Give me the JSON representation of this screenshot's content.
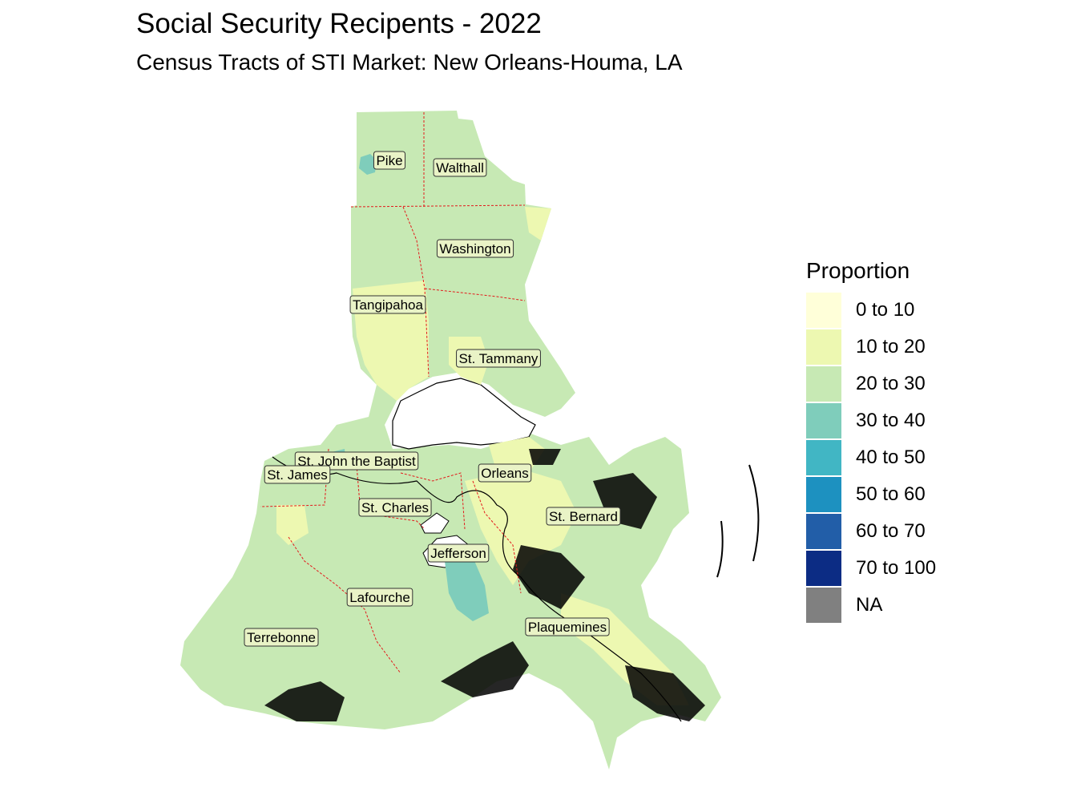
{
  "title": "Social Security Recipents - 2022",
  "subtitle": "Census Tracts of STI Market: New Orleans-Houma, LA",
  "legend": {
    "title": "Proportion",
    "items": [
      {
        "label": "0 to 10",
        "color": "#FFFFD9"
      },
      {
        "label": "10 to 20",
        "color": "#EDF8B1"
      },
      {
        "label": "20 to 30",
        "color": "#C7E9B4"
      },
      {
        "label": "30 to 40",
        "color": "#7FCDBB"
      },
      {
        "label": "40 to 50",
        "color": "#41B6C4"
      },
      {
        "label": "50 to 60",
        "color": "#1D91C0"
      },
      {
        "label": "60 to 70",
        "color": "#225EA8"
      },
      {
        "label": "70 to 100",
        "color": "#0C2C84"
      },
      {
        "label": "NA",
        "color": "#808080"
      }
    ]
  },
  "counties": [
    {
      "id": "pike",
      "label": "Pike"
    },
    {
      "id": "walthall",
      "label": "Walthall"
    },
    {
      "id": "washington",
      "label": "Washington"
    },
    {
      "id": "tangipahoa",
      "label": "Tangipahoa"
    },
    {
      "id": "st-tammany",
      "label": "St. Tammany"
    },
    {
      "id": "st-john",
      "label": "St. John the Baptist"
    },
    {
      "id": "st-james",
      "label": "St. James"
    },
    {
      "id": "orleans",
      "label": "Orleans"
    },
    {
      "id": "st-charles",
      "label": "St. Charles"
    },
    {
      "id": "st-bernard",
      "label": "St. Bernard"
    },
    {
      "id": "jefferson",
      "label": "Jefferson"
    },
    {
      "id": "lafourche",
      "label": "Lafourche"
    },
    {
      "id": "plaquemines",
      "label": "Plaquemines"
    },
    {
      "id": "terrebonne",
      "label": "Terrebonne"
    }
  ]
}
